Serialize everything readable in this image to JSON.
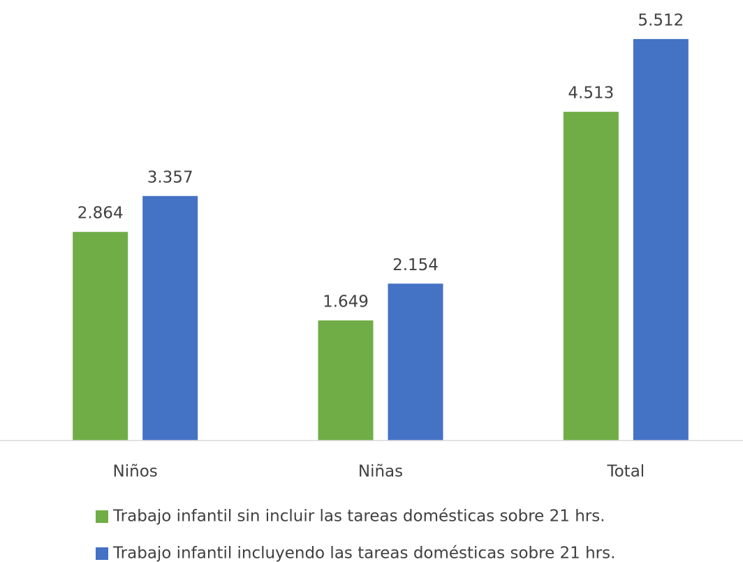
{
  "chart_data": {
    "type": "bar",
    "categories": [
      "Niños",
      "Niñas",
      "Total"
    ],
    "series": [
      {
        "name": "Trabajo infantil sin incluir las tareas domésticas sobre 21 hrs.",
        "color": "#70ad47",
        "values": [
          2.864,
          1.649,
          4.513
        ]
      },
      {
        "name": "Trabajo infantil incluyendo las tareas domésticas sobre 21 hrs.",
        "color": "#4472c4",
        "values": [
          3.357,
          2.154,
          5.512
        ]
      }
    ],
    "ylim": [
      0,
      6
    ]
  }
}
